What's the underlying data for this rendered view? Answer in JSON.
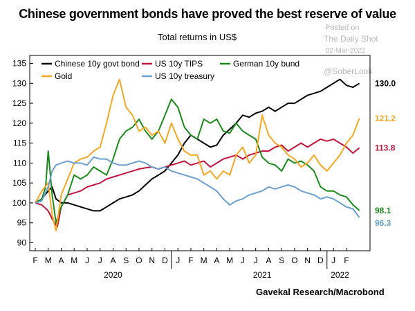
{
  "watermark": {
    "line1": "Posted on",
    "line2": "The Daily Shot",
    "line3": "02-Mar-2022",
    "line4": "@SoberLook"
  },
  "chart_data": {
    "type": "line",
    "title": "Chinese government bonds have proved the best reserve of value",
    "subtitle": "Total returns in US$",
    "source": "Gavekal Research/Macrobond",
    "ylim": [
      88,
      137
    ],
    "yticks": [
      90,
      95,
      100,
      105,
      110,
      115,
      120,
      125,
      130,
      135
    ],
    "xlim": [
      0,
      25.5
    ],
    "month_labels": [
      "F",
      "M",
      "A",
      "M",
      "J",
      "J",
      "A",
      "S",
      "O",
      "N",
      "D",
      "J",
      "F",
      "M",
      "A",
      "M",
      "J",
      "J",
      "A",
      "S",
      "O",
      "N",
      "D",
      "J",
      "F"
    ],
    "year_labels": [
      {
        "label": "2020",
        "x": 6
      },
      {
        "label": "2021",
        "x": 17.5
      },
      {
        "label": "2022",
        "x": 23.5
      }
    ],
    "legend": [
      "Chinese 10y govt bond",
      "US 10y TIPS",
      "German 10y bund",
      "Gold",
      "US 10y treasury"
    ],
    "series": [
      {
        "name": "Chinese 10y govt bond",
        "color": "#000000",
        "end_label": "130.0",
        "x": [
          0,
          0.5,
          1,
          1.3,
          1.6,
          2,
          2.5,
          3,
          3.5,
          4,
          4.5,
          5,
          5.5,
          6,
          6.5,
          7,
          7.5,
          8,
          8.5,
          9,
          9.5,
          10,
          10.5,
          11,
          11.5,
          12,
          12.5,
          13,
          13.5,
          14,
          14.5,
          15,
          15.5,
          16,
          16.5,
          17,
          17.5,
          18,
          18.5,
          19,
          19.5,
          20,
          20.5,
          21,
          21.5,
          22,
          22.5,
          23,
          23.5,
          24,
          24.5,
          25
        ],
        "values": [
          100,
          101,
          103,
          104,
          101,
          100,
          100,
          99.5,
          99,
          98.5,
          98,
          98,
          99,
          100,
          101,
          101.5,
          102,
          103,
          104.5,
          106,
          107,
          108,
          110,
          112,
          115,
          117,
          116,
          115,
          114,
          114.5,
          117,
          118.5,
          120,
          122,
          121.5,
          122.5,
          123,
          124,
          123,
          124,
          125,
          125,
          126,
          127,
          127.5,
          128,
          129,
          130,
          131,
          129.5,
          129,
          130
        ]
      },
      {
        "name": "US 10y TIPS",
        "color": "#c0143c",
        "end_label": "113.8",
        "x": [
          0,
          0.5,
          1,
          1.3,
          1.7,
          2,
          2.5,
          3,
          3.5,
          4,
          4.5,
          5,
          5.5,
          6,
          6.5,
          7,
          7.5,
          8,
          8.5,
          9,
          9.5,
          10,
          10.5,
          11,
          11.5,
          12,
          12.5,
          13,
          13.5,
          14,
          14.5,
          15,
          15.5,
          16,
          16.5,
          17,
          17.5,
          18,
          18.5,
          19,
          19.5,
          20,
          20.5,
          21,
          21.5,
          22,
          22.5,
          23,
          23.5,
          24,
          24.5,
          25
        ],
        "values": [
          100,
          99.5,
          98,
          96,
          94,
          99,
          102,
          102.5,
          103,
          104,
          104.5,
          105,
          106,
          106.5,
          107,
          107.5,
          108,
          108.5,
          108.8,
          109,
          108.5,
          109,
          109.5,
          110,
          110.5,
          109.5,
          110,
          110.5,
          109,
          110,
          111,
          111.5,
          112,
          111,
          112,
          112.5,
          113,
          113,
          114,
          114.5,
          113,
          114,
          115,
          114,
          115,
          116,
          115.5,
          116,
          115,
          114,
          112.5,
          113.8
        ]
      },
      {
        "name": "German 10y bund",
        "color": "#1a8a1a",
        "end_label": "98.1",
        "x": [
          0,
          0.5,
          0.8,
          1,
          1.3,
          1.6,
          2,
          2.5,
          3,
          3.5,
          4,
          4.5,
          5,
          5.5,
          6,
          6.5,
          7,
          7.5,
          8,
          8.5,
          9,
          9.5,
          10,
          10.5,
          11,
          11.5,
          12,
          12.5,
          13,
          13.5,
          14,
          14.5,
          15,
          15.5,
          16,
          16.5,
          17,
          17.5,
          18,
          18.5,
          19,
          19.5,
          20,
          20.5,
          21,
          21.5,
          22,
          22.5,
          23,
          23.5,
          24,
          24.5,
          25
        ],
        "values": [
          100,
          101,
          104,
          113,
          102,
          95,
          99,
          102,
          107,
          106,
          107,
          109,
          108,
          107,
          111,
          116,
          118,
          119,
          121,
          118,
          116,
          118,
          122,
          126,
          124,
          119,
          117,
          116,
          121,
          120,
          121,
          118,
          117.5,
          120,
          118,
          117,
          116,
          111.5,
          110,
          109.5,
          108,
          111,
          110,
          110.5,
          109.5,
          108,
          104,
          103,
          103,
          102,
          101.5,
          99.5,
          98.1
        ]
      },
      {
        "name": "Gold",
        "color": "#f5a623",
        "end_label": "121.2",
        "x": [
          0,
          0.5,
          1,
          1.3,
          1.6,
          2,
          2.5,
          3,
          3.5,
          4,
          4.5,
          5,
          5.5,
          6,
          6.5,
          7,
          7.5,
          8,
          8.5,
          9,
          9.5,
          10,
          10.5,
          11,
          11.5,
          12,
          12.5,
          13,
          13.5,
          14,
          14.5,
          15,
          15.5,
          16,
          16.5,
          17,
          17.5,
          18,
          18.5,
          19,
          19.5,
          20,
          20.5,
          21,
          21.5,
          22,
          22.5,
          23,
          23.5,
          24,
          24.5,
          25
        ],
        "values": [
          100,
          103,
          105,
          97,
          93,
          102,
          106,
          110,
          111,
          111.5,
          113,
          114,
          120,
          127,
          131,
          124,
          122,
          118,
          119,
          117,
          118,
          115,
          120,
          116,
          113,
          112,
          112,
          107,
          108,
          106,
          108,
          107,
          112,
          114,
          110,
          112,
          122,
          117,
          115,
          114,
          112,
          111,
          109,
          110,
          112,
          109.5,
          108,
          110,
          112,
          115,
          117,
          121.2
        ]
      },
      {
        "name": "US 10y treasury",
        "color": "#6a9fcf",
        "end_label": "96.3",
        "x": [
          0,
          0.5,
          1,
          1.3,
          1.6,
          2,
          2.5,
          3,
          3.5,
          4,
          4.5,
          5,
          5.5,
          6,
          6.5,
          7,
          7.5,
          8,
          8.5,
          9,
          9.5,
          10,
          10.5,
          11,
          11.5,
          12,
          12.5,
          13,
          13.5,
          14,
          14.5,
          15,
          15.5,
          16,
          16.5,
          17,
          17.5,
          18,
          18.5,
          19,
          19.5,
          20,
          20.5,
          21,
          21.5,
          22,
          22.5,
          23,
          23.5,
          24,
          24.5,
          25
        ],
        "values": [
          100,
          100.5,
          104,
          108,
          109.5,
          110,
          110.5,
          110,
          110,
          109.5,
          111.5,
          111,
          111,
          110,
          109.5,
          109.5,
          110,
          110.5,
          110,
          109,
          108.5,
          109,
          108,
          107.5,
          107,
          106.5,
          106,
          105,
          104,
          103,
          101,
          99.5,
          100.5,
          101,
          102,
          102.5,
          103,
          104,
          103.5,
          104,
          104.5,
          104,
          103,
          102.5,
          102,
          101,
          101.5,
          101,
          100,
          99,
          98.5,
          96.3
        ]
      }
    ]
  }
}
